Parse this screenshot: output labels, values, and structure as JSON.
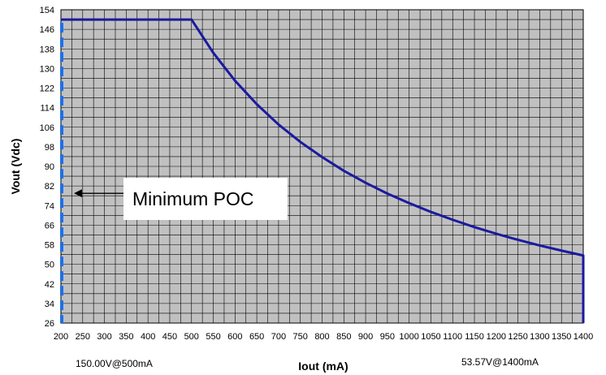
{
  "chart_data": {
    "type": "line",
    "title": "",
    "xlabel": "Iout (mA)",
    "ylabel": "Vout (Vdc)",
    "xlim": [
      200,
      1400
    ],
    "ylim": [
      26,
      154
    ],
    "x_ticks": [
      200,
      250,
      300,
      350,
      400,
      450,
      500,
      550,
      600,
      650,
      700,
      750,
      800,
      850,
      900,
      950,
      1000,
      1050,
      1100,
      1150,
      1200,
      1250,
      1300,
      1350,
      1400
    ],
    "y_ticks": [
      154,
      146,
      138,
      130,
      122,
      114,
      106,
      98,
      90,
      82,
      74,
      66,
      58,
      50,
      42,
      34,
      26
    ],
    "grid": true,
    "colors": {
      "line": "#1a1aa0",
      "plot_bg": "#c0c0c0",
      "grid": "#000000",
      "marker": "#1f6fe8"
    },
    "series": [
      {
        "x": [
          200,
          500,
          550,
          600,
          650,
          700,
          750,
          800,
          850,
          900,
          950,
          1000,
          1050,
          1100,
          1150,
          1200,
          1250,
          1300,
          1350,
          1400,
          1400
        ],
        "y": [
          150,
          150,
          136.4,
          125,
          115.4,
          107.1,
          100,
          93.8,
          88.2,
          83.3,
          78.9,
          75,
          71.4,
          68.2,
          65.2,
          62.5,
          60,
          57.7,
          55.6,
          53.6,
          26
        ]
      }
    ],
    "vertical_marker": {
      "x": 200,
      "y_range": [
        26,
        150
      ]
    },
    "annotations": {
      "callout": {
        "text": "Minimum POC",
        "arrow_y": 79
      },
      "left_note": "150.00V@500mA",
      "right_note": "53.57V@1400mA"
    }
  }
}
